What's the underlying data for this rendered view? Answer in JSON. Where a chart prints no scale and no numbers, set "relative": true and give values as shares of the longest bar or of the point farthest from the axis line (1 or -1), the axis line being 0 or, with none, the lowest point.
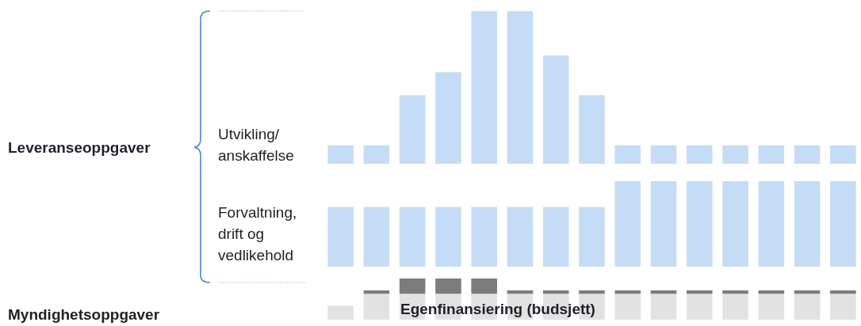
{
  "chart_data": [
    {
      "type": "bar",
      "relative": true,
      "ylabel": "Utvikling/ anskaffelse",
      "annotations": [
        "Leveranseoppgaver"
      ],
      "categories": [
        null,
        null,
        null,
        null,
        null,
        null,
        null,
        null,
        null,
        null,
        null,
        null,
        null,
        null,
        null
      ],
      "series": [
        {
          "color": "#c5dcf6",
          "values": [
            0.12,
            0.12,
            0.45,
            0.6,
            1,
            1,
            0.71,
            0.45,
            0.12,
            0.12,
            0.12,
            0.12,
            0.12,
            0.12,
            0.12
          ]
        }
      ]
    },
    {
      "type": "bar",
      "relative": true,
      "ylabel": "Forvaltning, drift og vedlikehold",
      "categories": [
        null,
        null,
        null,
        null,
        null,
        null,
        null,
        null,
        null,
        null,
        null,
        null,
        null,
        null,
        null
      ],
      "series": [
        {
          "color": "#c5dcf6",
          "values": [
            0.7,
            0.7,
            0.7,
            0.7,
            0.7,
            0.7,
            0.7,
            0.7,
            1,
            1,
            1,
            1,
            1,
            1,
            1
          ]
        }
      ]
    },
    {
      "type": "bar",
      "relative": true,
      "stacked": true,
      "ylabel": "Myndighetsoppgaver",
      "annotations": [
        "Egenfinansiering (budsjett)"
      ],
      "categories": [
        null,
        null,
        null,
        null,
        null,
        null,
        null,
        null,
        null,
        null,
        null,
        null,
        null,
        null,
        null
      ],
      "series": [
        {
          "color": "#e2e2e2",
          "values": [
            0.34,
            0.63,
            0.63,
            0.63,
            0.63,
            0.63,
            0.63,
            0.63,
            0.63,
            0.63,
            0.63,
            0.63,
            0.63,
            0.63,
            0.63
          ]
        },
        {
          "color": "#7c7c7c",
          "values": [
            null,
            0.08,
            0.37,
            0.37,
            0.37,
            0.08,
            0.08,
            0.08,
            0.08,
            0.08,
            0.08,
            0.08,
            0.08,
            0.08,
            0.08
          ]
        }
      ]
    }
  ]
}
